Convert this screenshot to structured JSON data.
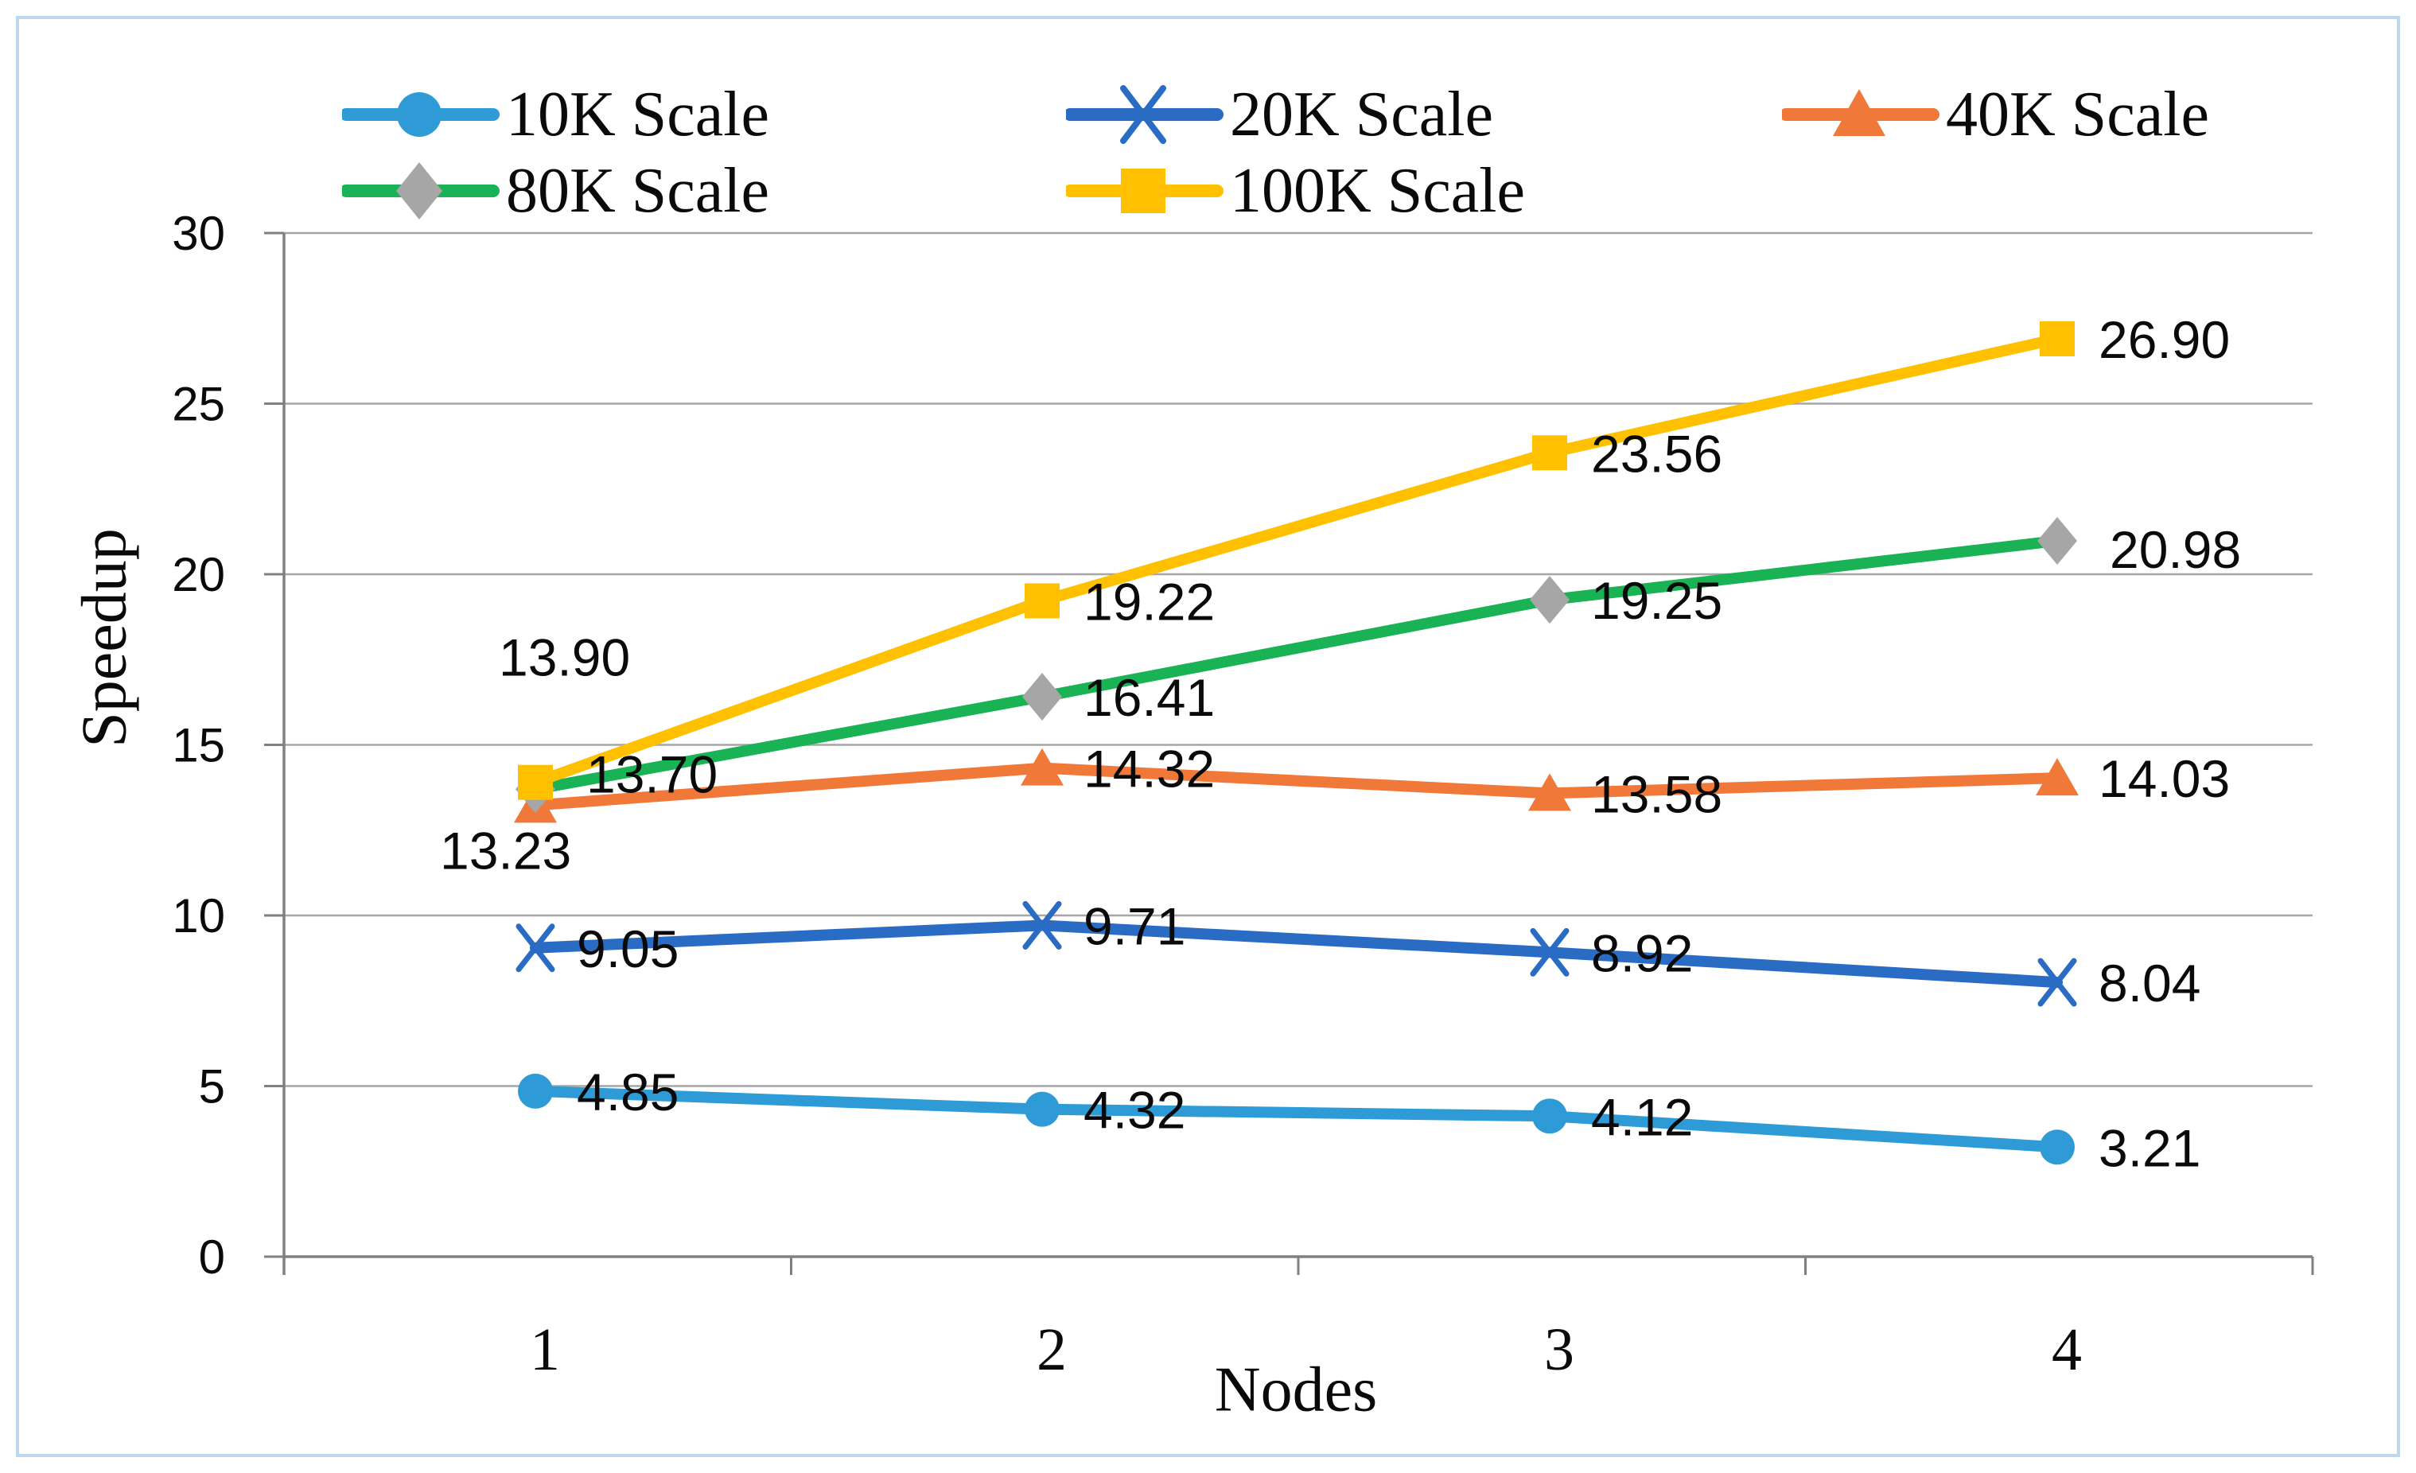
{
  "chart_data": {
    "type": "line",
    "title": "",
    "xlabel": "Nodes",
    "ylabel": "Speedup",
    "x": [
      "1",
      "2",
      "3",
      "4"
    ],
    "ylim": [
      0,
      30
    ],
    "yticks": [
      0,
      5,
      10,
      15,
      20,
      25,
      30
    ],
    "grid": true,
    "legend_position": "top",
    "colors": {
      "grid": "#A6A6A6",
      "axis": "#808080",
      "frame_border": "#BDD7EE",
      "label_text": "#0a0a0a"
    },
    "series": [
      {
        "name": "10K Scale",
        "color": "#2E9BD6",
        "marker": "circle",
        "marker_color": "#2E9BD6",
        "values": [
          4.85,
          4.32,
          4.12,
          3.21
        ],
        "labels": [
          "4.85",
          "4.32",
          "4.12",
          "3.21"
        ]
      },
      {
        "name": "20K Scale",
        "color": "#2A6BC4",
        "marker": "x",
        "marker_color": "#2A6BC4",
        "values": [
          9.05,
          9.71,
          8.92,
          8.04
        ],
        "labels": [
          "9.05",
          "9.71",
          "8.92",
          "8.04"
        ]
      },
      {
        "name": "40K Scale",
        "color": "#F0793A",
        "marker": "triangle",
        "marker_color": "#F0793A",
        "values": [
          13.23,
          14.32,
          13.58,
          14.03
        ],
        "labels": [
          "13.23",
          "14.32",
          "13.58",
          "14.03"
        ]
      },
      {
        "name": "80K Scale",
        "color": "#19B254",
        "marker": "diamond",
        "marker_color": "#A6A6A6",
        "values": [
          13.7,
          16.41,
          19.25,
          20.98
        ],
        "labels": [
          "13.70",
          "16.41",
          "19.25",
          "20.98"
        ]
      },
      {
        "name": "100K Scale",
        "color": "#FFC000",
        "marker": "square",
        "marker_color": "#FFC000",
        "values": [
          13.9,
          19.22,
          23.56,
          26.9
        ],
        "labels": [
          "13.90",
          "19.22",
          "23.56",
          "26.90"
        ]
      }
    ]
  }
}
